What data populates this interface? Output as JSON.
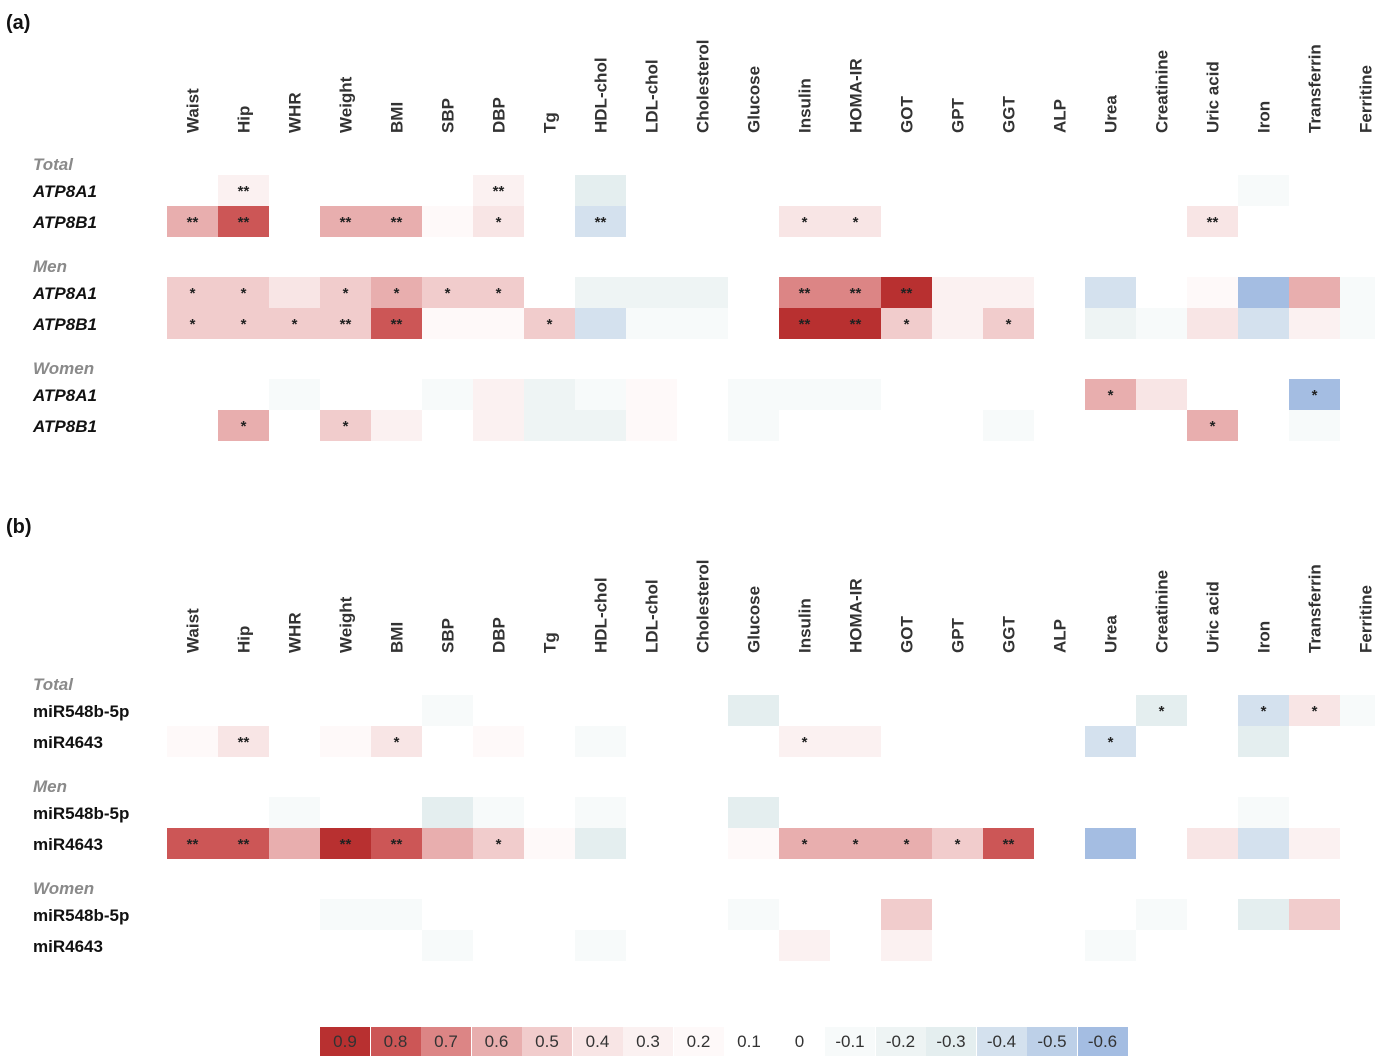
{
  "panels_labels": [
    "(a)",
    "(b)"
  ],
  "legend": {
    "values": [
      "0.9",
      "0.8",
      "0.7",
      "0.6",
      "0.5",
      "0.4",
      "0.3",
      "0.2",
      "0.1",
      "0",
      "-0.1",
      "-0.2",
      "-0.3",
      "-0.4",
      "-0.5",
      "-0.6"
    ],
    "colors": [
      "#b83030",
      "#cc5656",
      "#dc8585",
      "#e8aeae",
      "#f1cccc",
      "#f8e5e5",
      "#fbf1f1",
      "#fef9f9",
      "#ffffff",
      "#ffffff",
      "#f7fafa",
      "#eef4f4",
      "#e4eeef",
      "#d4e1ee",
      "#bdd0e8",
      "#a4bde2"
    ]
  },
  "chart_data": [
    {
      "type": "heatmap",
      "panel": "(a)",
      "columns": [
        "Waist",
        "Hip",
        "WHR",
        "Weight",
        "BMI",
        "SBP",
        "DBP",
        "Tg",
        "HDL-chol",
        "LDL-chol",
        "Cholesterol",
        "Glucose",
        "Insulin",
        "HOMA-IR",
        "GOT",
        "GPT",
        "GGT",
        "ALP",
        "Urea",
        "Creatinine",
        "Uric acid",
        "Iron",
        "Transferrin",
        "Ferritine"
      ],
      "groups": [
        {
          "name": "Total",
          "rows": [
            {
              "label": "ATP8A1",
              "values": [
                0.1,
                0.3,
                0,
                0.1,
                0.1,
                0.1,
                0.3,
                0,
                -0.3,
                0,
                0,
                0,
                0.1,
                0.1,
                0.1,
                0.1,
                0,
                0,
                0,
                0,
                0,
                -0.1,
                0,
                0
              ],
              "sig": [
                "",
                "**",
                "",
                "",
                "",
                "",
                "**",
                "",
                "",
                "",
                "",
                "",
                "",
                "",
                "",
                "",
                "",
                "",
                "",
                "",
                "",
                "",
                "",
                ""
              ]
            },
            {
              "label": "ATP8B1",
              "values": [
                0.6,
                0.8,
                0,
                0.6,
                0.6,
                0.2,
                0.4,
                0,
                -0.4,
                0,
                0,
                0,
                0.4,
                0.4,
                0,
                0,
                0,
                0,
                0,
                0,
                0.4,
                0,
                0,
                0
              ],
              "sig": [
                "**",
                "**",
                "",
                "**",
                "**",
                "",
                "*",
                "",
                "**",
                "",
                "",
                "",
                "*",
                "*",
                "",
                "",
                "",
                "",
                "",
                "",
                "**",
                "",
                "",
                ""
              ]
            }
          ]
        },
        {
          "name": "Men",
          "rows": [
            {
              "label": "ATP8A1",
              "values": [
                0.5,
                0.5,
                0.4,
                0.5,
                0.6,
                0.5,
                0.5,
                0,
                -0.2,
                -0.2,
                -0.2,
                0.1,
                0.7,
                0.7,
                0.9,
                0.3,
                0.3,
                0,
                -0.4,
                0,
                0.2,
                -0.6,
                0.6,
                -0.1
              ],
              "sig": [
                "*",
                "*",
                "",
                "*",
                "*",
                "*",
                "*",
                "",
                "",
                "",
                "",
                "",
                "**",
                "**",
                "**",
                "",
                "",
                "",
                "",
                "",
                "",
                "",
                "",
                ""
              ]
            },
            {
              "label": "ATP8B1",
              "values": [
                0.5,
                0.5,
                0.5,
                0.5,
                0.8,
                0.2,
                0.2,
                0.5,
                -0.4,
                -0.1,
                -0.1,
                0,
                0.9,
                0.9,
                0.5,
                0.3,
                0.5,
                0,
                -0.2,
                -0.1,
                0.4,
                -0.4,
                0.3,
                -0.1
              ],
              "sig": [
                "*",
                "*",
                "*",
                "**",
                "**",
                "",
                "",
                "*",
                "",
                "",
                "",
                "",
                "**",
                "**",
                "*",
                "",
                "*",
                "",
                "",
                "",
                "",
                "",
                "",
                ""
              ]
            }
          ]
        },
        {
          "name": "Women",
          "rows": [
            {
              "label": "ATP8A1",
              "values": [
                0,
                0,
                -0.1,
                0,
                0,
                -0.1,
                0.3,
                -0.2,
                -0.1,
                0.2,
                0.1,
                -0.1,
                -0.1,
                -0.1,
                0,
                0.1,
                0,
                0.1,
                0.6,
                0.4,
                0,
                0,
                -0.6,
                0
              ],
              "sig": [
                "",
                "",
                "",
                "",
                "",
                "",
                "",
                "",
                "",
                "",
                "",
                "",
                "",
                "",
                "",
                "",
                "",
                "",
                "*",
                "",
                "",
                "",
                "*",
                ""
              ]
            },
            {
              "label": "ATP8B1",
              "values": [
                0.1,
                0.6,
                0,
                0.5,
                0.3,
                0.1,
                0.3,
                -0.2,
                -0.2,
                0.2,
                0,
                -0.1,
                0,
                0,
                0,
                0.1,
                -0.1,
                0,
                0.1,
                0.1,
                0.6,
                0,
                -0.1,
                0
              ],
              "sig": [
                "",
                "*",
                "",
                "*",
                "",
                "",
                "",
                "",
                "",
                "",
                "",
                "",
                "",
                "",
                "",
                "",
                "",
                "",
                "",
                "",
                "*",
                "",
                "",
                ""
              ]
            }
          ]
        }
      ]
    },
    {
      "type": "heatmap",
      "panel": "(b)",
      "columns": [
        "Waist",
        "Hip",
        "WHR",
        "Weight",
        "BMI",
        "SBP",
        "DBP",
        "Tg",
        "HDL-chol",
        "LDL-chol",
        "Cholesterol",
        "Glucose",
        "Insulin",
        "HOMA-IR",
        "GOT",
        "GPT",
        "GGT",
        "ALP",
        "Urea",
        "Creatinine",
        "Uric acid",
        "Iron",
        "Transferrin",
        "Ferritine"
      ],
      "groups": [
        {
          "name": "Total",
          "rows": [
            {
              "label": "miR548b-5p",
              "values": [
                0,
                0,
                0,
                0,
                0,
                -0.1,
                0,
                0,
                0,
                0,
                0,
                -0.3,
                0,
                0,
                0,
                0,
                0,
                0,
                0,
                -0.3,
                0,
                -0.4,
                0.4,
                -0.1
              ],
              "sig": [
                "",
                "",
                "",
                "",
                "",
                "",
                "",
                "",
                "",
                "",
                "",
                "",
                "",
                "",
                "",
                "",
                "",
                "",
                "",
                "*",
                "",
                "*",
                "*",
                ""
              ]
            },
            {
              "label": "miR4643",
              "values": [
                0.2,
                0.4,
                0,
                0.2,
                0.4,
                0,
                0.2,
                0,
                -0.1,
                0,
                0,
                0,
                0.3,
                0.3,
                0,
                0.1,
                0,
                0,
                -0.4,
                0,
                0,
                -0.3,
                0,
                0
              ],
              "sig": [
                "",
                "**",
                "",
                "",
                "*",
                "",
                "",
                "",
                "",
                "",
                "",
                "",
                "*",
                "",
                "",
                "",
                "",
                "",
                "*",
                "",
                "",
                "",
                "",
                ""
              ]
            }
          ]
        },
        {
          "name": "Men",
          "rows": [
            {
              "label": "miR548b-5p",
              "values": [
                0,
                0,
                -0.1,
                0,
                0,
                -0.3,
                -0.1,
                0,
                -0.1,
                0,
                0,
                -0.3,
                0,
                0,
                0,
                0,
                0,
                0,
                0,
                0,
                0,
                -0.1,
                0.1,
                0
              ],
              "sig": [
                "",
                "",
                "",
                "",
                "",
                "",
                "",
                "",
                "",
                "",
                "",
                "",
                "",
                "",
                "",
                "",
                "",
                "",
                "",
                "",
                "",
                "",
                "",
                ""
              ]
            },
            {
              "label": "miR4643",
              "values": [
                0.8,
                0.8,
                0.6,
                0.9,
                0.8,
                0.6,
                0.5,
                0.2,
                -0.3,
                0,
                0,
                0.2,
                0.6,
                0.6,
                0.6,
                0.5,
                0.8,
                0,
                -0.6,
                0,
                0.4,
                -0.4,
                0.3,
                0
              ],
              "sig": [
                "**",
                "**",
                "",
                "**",
                "**",
                "",
                "*",
                "",
                "",
                "",
                "",
                "",
                "*",
                "*",
                "*",
                "*",
                "**",
                "",
                "",
                "",
                "",
                "",
                "",
                ""
              ]
            }
          ]
        },
        {
          "name": "Women",
          "rows": [
            {
              "label": "miR548b-5p",
              "values": [
                0,
                0,
                0,
                -0.1,
                -0.1,
                0,
                0,
                0,
                0,
                0,
                0,
                -0.1,
                0,
                0,
                0.5,
                0,
                0,
                0,
                0,
                -0.1,
                0,
                -0.3,
                0.5,
                0
              ],
              "sig": [
                "",
                "",
                "",
                "",
                "",
                "",
                "",
                "",
                "",
                "",
                "",
                "",
                "",
                "",
                "",
                "",
                "",
                "",
                "",
                "",
                "",
                "",
                "",
                ""
              ]
            },
            {
              "label": "miR4643",
              "values": [
                0,
                0,
                0,
                0,
                0,
                -0.1,
                0,
                0,
                -0.1,
                0.1,
                0,
                0,
                0.3,
                0.1,
                0.3,
                0.1,
                0,
                0,
                -0.1,
                0,
                0,
                0,
                0,
                0
              ],
              "sig": [
                "",
                "",
                "",
                "",
                "",
                "",
                "",
                "",
                "",
                "",
                "",
                "",
                "",
                "",
                "",
                "",
                "",
                "",
                "",
                "",
                "",
                "",
                "",
                ""
              ]
            }
          ]
        }
      ]
    }
  ]
}
